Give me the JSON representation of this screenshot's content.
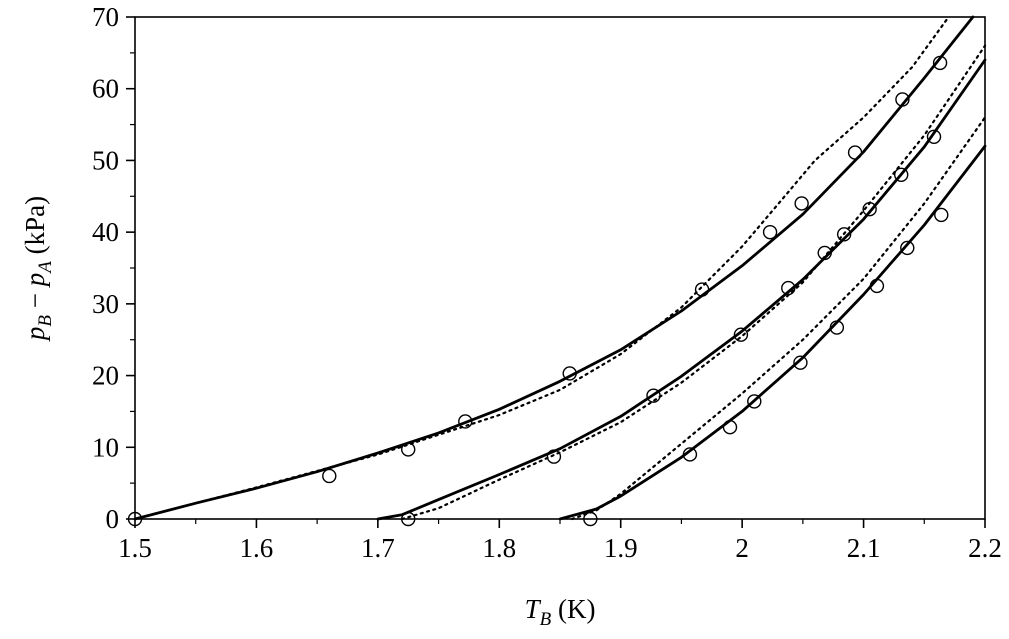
{
  "chart_data": {
    "type": "line",
    "title": "",
    "xlabel": {
      "var": "T",
      "sub": "B",
      "unit": " (K)"
    },
    "ylabel": {
      "v1": "p",
      "s1": "B",
      "minus": " − ",
      "v2": "p",
      "s2": "A",
      "unit": " (kPa)"
    },
    "xlim": [
      1.5,
      2.2
    ],
    "ylim": [
      0,
      70
    ],
    "xticks": [
      1.5,
      1.6,
      1.7,
      1.8,
      1.9,
      2.0,
      2.1,
      2.2
    ],
    "xtick_labels": [
      "1.5",
      "1.6",
      "1.7",
      "1.8",
      "1.9",
      "2",
      "2.1",
      "2.2"
    ],
    "yticks": [
      0,
      10,
      20,
      30,
      40,
      50,
      60,
      70
    ],
    "ytick_labels": [
      "0",
      "10",
      "20",
      "30",
      "40",
      "50",
      "60",
      "70"
    ],
    "grid": false,
    "legend": "none",
    "series": [
      {
        "style": "solid",
        "x": [
          1.5,
          1.55,
          1.6,
          1.65,
          1.7,
          1.75,
          1.8,
          1.85,
          1.9,
          1.95,
          2.0,
          2.05,
          2.1,
          2.15,
          2.19
        ],
        "y": [
          0,
          2.2,
          4.3,
          6.6,
          9.2,
          12.0,
          15.3,
          19.2,
          23.6,
          29.0,
          35.3,
          42.5,
          51.2,
          61.5,
          70
        ]
      },
      {
        "style": "dotted",
        "x": [
          1.5,
          1.6,
          1.7,
          1.8,
          1.85,
          1.9,
          1.95,
          2.0,
          2.03,
          2.06,
          2.1,
          2.14,
          2.17
        ],
        "y": [
          0,
          4.4,
          9.0,
          14.5,
          18.0,
          23.0,
          29.5,
          38.0,
          44.0,
          50.0,
          56.0,
          63.0,
          70
        ]
      },
      {
        "style": "solid",
        "x": [
          1.7,
          1.72,
          1.75,
          1.8,
          1.85,
          1.9,
          1.95,
          2.0,
          2.05,
          2.1,
          2.15,
          2.2
        ],
        "y": [
          0,
          0.6,
          2.7,
          6.2,
          9.8,
          14.3,
          19.9,
          26.2,
          33.4,
          41.8,
          51.9,
          64.0
        ]
      },
      {
        "style": "dotted",
        "x": [
          1.72,
          1.75,
          1.8,
          1.85,
          1.9,
          1.95,
          2.0,
          2.05,
          2.1,
          2.15,
          2.2
        ],
        "y": [
          0,
          1.5,
          5.5,
          9.3,
          13.5,
          19.0,
          25.5,
          33.0,
          43.0,
          53.5,
          66.0
        ]
      },
      {
        "style": "solid",
        "x": [
          1.85,
          1.88,
          1.9,
          1.95,
          2.0,
          2.05,
          2.1,
          2.15,
          2.2
        ],
        "y": [
          0,
          1.4,
          3.2,
          8.6,
          15.0,
          22.5,
          31.3,
          41.0,
          52.0
        ]
      },
      {
        "style": "dotted",
        "x": [
          1.86,
          1.88,
          1.9,
          1.95,
          2.0,
          2.05,
          2.1,
          2.15,
          2.2
        ],
        "y": [
          0,
          1.2,
          3.5,
          10.5,
          17.5,
          25.0,
          33.5,
          44.0,
          56.0
        ]
      },
      {
        "style": "markers",
        "marker": "circle",
        "x": [
          1.5,
          1.66,
          1.725,
          1.772,
          1.858,
          1.967,
          2.023,
          2.049,
          2.093,
          2.132,
          2.163,
          1.725,
          1.845,
          1.927,
          1.999,
          2.038,
          2.068,
          2.084,
          2.105,
          2.131,
          2.158,
          1.875,
          1.957,
          1.99,
          2.01,
          2.048,
          2.078,
          2.111,
          2.136,
          2.164
        ],
        "y": [
          0,
          6,
          9.7,
          13.6,
          20.3,
          32.0,
          40.0,
          44.0,
          51.1,
          58.5,
          63.6,
          0,
          8.7,
          17.2,
          25.7,
          32.2,
          37.1,
          39.7,
          43.2,
          48.0,
          53.3,
          0,
          9.0,
          12.8,
          16.4,
          21.8,
          26.7,
          32.5,
          37.8,
          42.4
        ]
      }
    ]
  }
}
